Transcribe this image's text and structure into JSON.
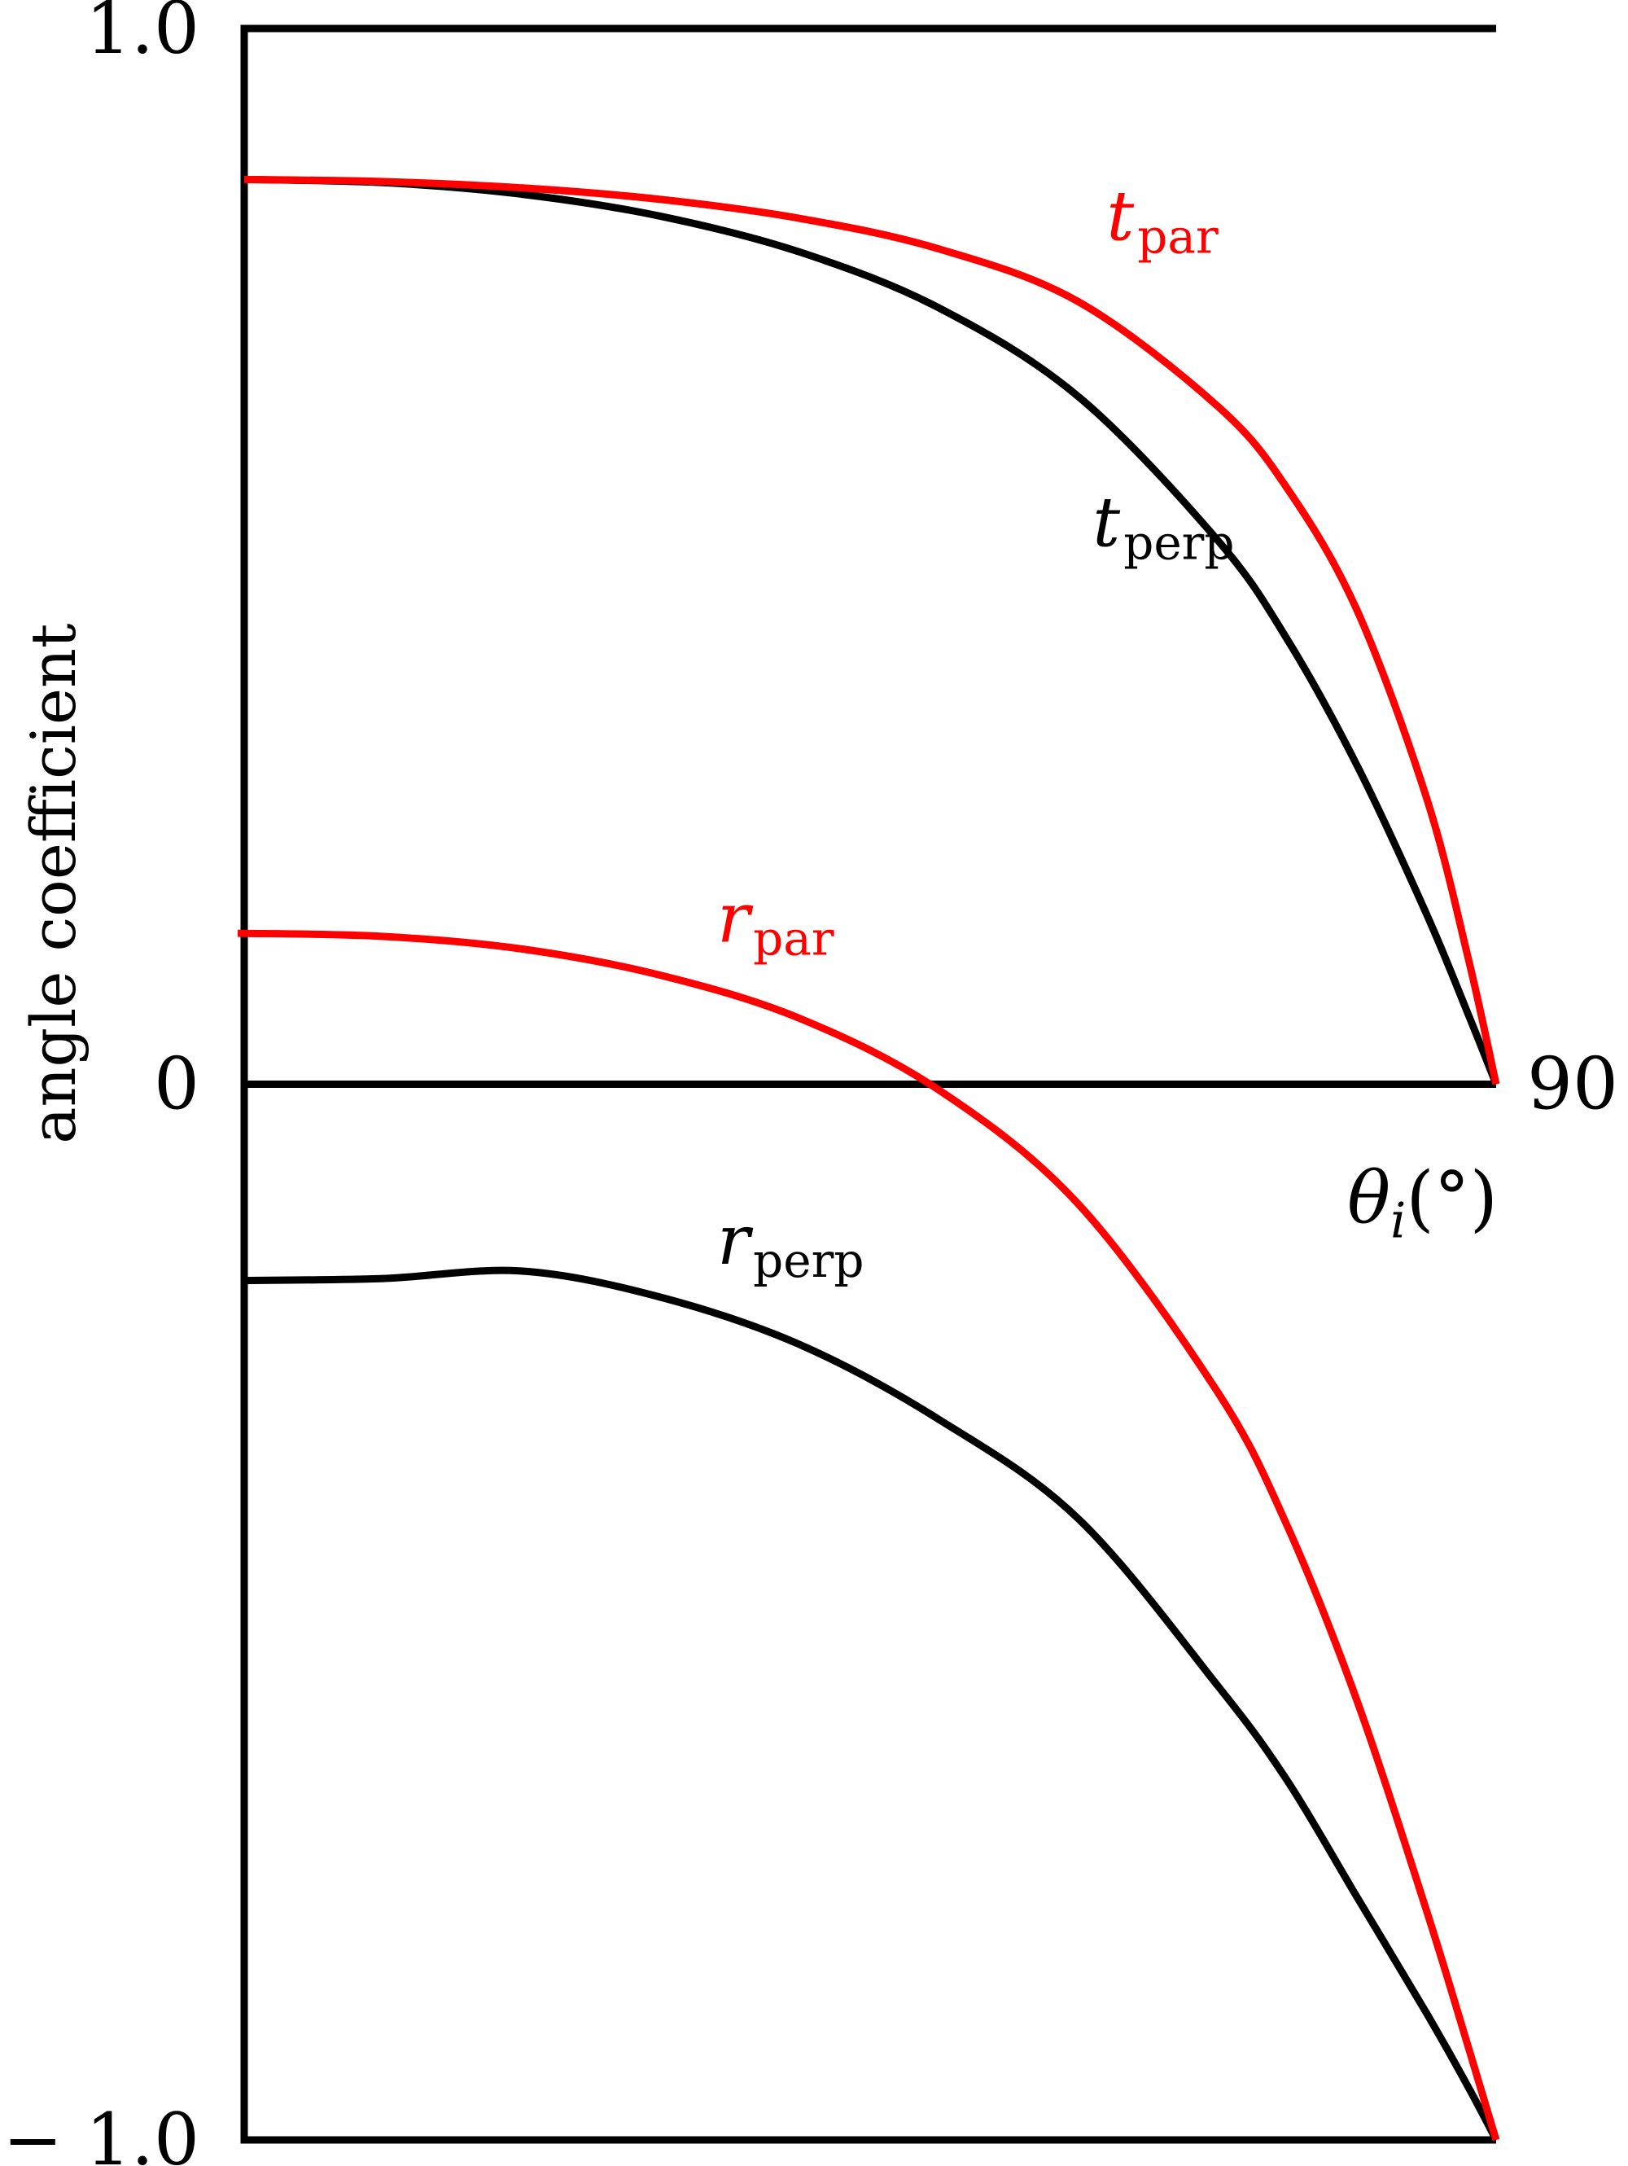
{
  "chart_data": {
    "type": "line",
    "xlabel": "θi(°)",
    "ylabel": "angle coefficient",
    "x_tick_labels": [
      {
        "value": 90,
        "label": "90"
      }
    ],
    "y_tick_labels": [
      {
        "value": 1.0,
        "label": "1.0"
      },
      {
        "value": 0,
        "label": "0"
      },
      {
        "value": -1.0,
        "label": "− 1.0"
      }
    ],
    "xlim": [
      0,
      90
    ],
    "ylim": [
      -1.0,
      1.0
    ],
    "grid": false,
    "reference_lines": [
      1.0,
      0,
      -1.0
    ],
    "colors": {
      "black": "#000000",
      "red": "#ff0000"
    },
    "series": [
      {
        "name_main": "t",
        "name_sub": "par",
        "color": "#ff0000",
        "x": [
          0,
          10,
          20,
          30,
          40,
          50,
          60,
          70,
          75,
          80,
          85,
          88,
          90
        ],
        "values": [
          0.857,
          0.855,
          0.849,
          0.838,
          0.82,
          0.791,
          0.741,
          0.642,
          0.564,
          0.449,
          0.271,
          0.119,
          0.0
        ]
      },
      {
        "name_main": "t",
        "name_sub": "perp",
        "color": "#000000",
        "x": [
          0,
          10,
          20,
          30,
          40,
          50,
          60,
          70,
          75,
          80,
          85,
          88,
          90
        ],
        "values": [
          0.857,
          0.854,
          0.843,
          0.822,
          0.788,
          0.735,
          0.651,
          0.515,
          0.421,
          0.302,
          0.161,
          0.066,
          0.0
        ]
      },
      {
        "name_main": "r",
        "name_sub": "par",
        "color": "#ff0000",
        "x": [
          0,
          10,
          20,
          30,
          40,
          50,
          60,
          70,
          75,
          80,
          85,
          88,
          90
        ],
        "values": [
          0.143,
          0.14,
          0.128,
          0.103,
          0.062,
          -0.006,
          -0.114,
          -0.292,
          -0.419,
          -0.584,
          -0.783,
          -0.912,
          -1.0
        ]
      },
      {
        "name_main": "r",
        "name_sub": "perp",
        "color": "#000000",
        "x": [
          0,
          10,
          20,
          30,
          40,
          50,
          60,
          70,
          75,
          80,
          85,
          88,
          90
        ],
        "values": [
          -0.186,
          -0.184,
          -0.177,
          -0.202,
          -0.247,
          -0.318,
          -0.412,
          -0.57,
          -0.66,
          -0.77,
          -0.88,
          -0.95,
          -1.0
        ]
      }
    ]
  }
}
